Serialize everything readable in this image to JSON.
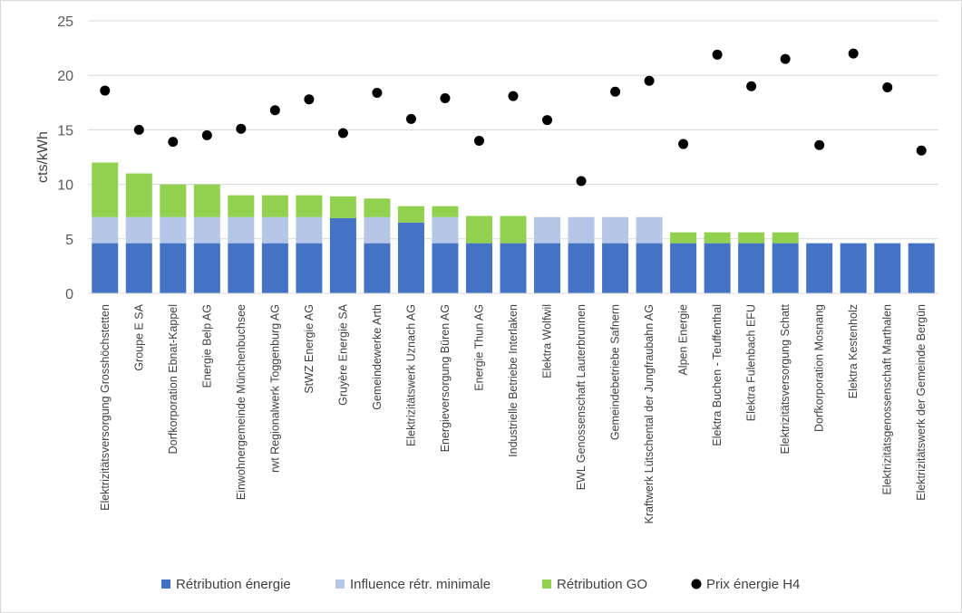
{
  "chart_data": {
    "type": "bar",
    "stacked": true,
    "ylabel": "cts/kWh",
    "xlabel": "",
    "ylim": [
      0,
      25
    ],
    "yticks": [
      0,
      5,
      10,
      15,
      20,
      25
    ],
    "grid": true,
    "legend_position": "bottom",
    "categories": [
      "Elektrizitätsversorgung Grosshöchstetten",
      "Groupe E SA",
      "Dorfkorporation Ebnat-Kappel",
      "Energie Belp AG",
      "Einwohnergemeinde Münchenbuchsee",
      "rwt Regionalwerk Toggenburg AG",
      "StWZ Energie AG",
      "Gruyère Energie SA",
      "Gemeindewerke Arth",
      "Elektrizitätswerk Uznach AG",
      "Energieversorgung Büren AG",
      "Energie Thun AG",
      "Industrielle Betriebe Interlaken",
      "Elektra Wolfwil",
      "EWL Genossenschaft Lauterbrunnen",
      "Gemeindebetriebe Safnern",
      "Kraftwerk Lütschental der Jungfraubahn AG",
      "Alpen Energie",
      "Elektra Buchen - Teuffenthal",
      "Elektra Fulenbach EFU",
      "Elektrizitätsversorgung Schatt",
      "Dorfkorporation Mosnang",
      "Elektra Kestenholz",
      "Elektrizitätsgenossenschaft Marthalen",
      "Elektrizitätswerk der Gemeinde Bergün"
    ],
    "series": [
      {
        "name": "Rétribution énergie",
        "kind": "bar",
        "color": "#4472c4",
        "values": [
          4.6,
          4.6,
          4.6,
          4.6,
          4.6,
          4.6,
          4.6,
          6.9,
          4.6,
          6.5,
          4.6,
          4.6,
          4.6,
          4.6,
          4.6,
          4.6,
          4.6,
          4.6,
          4.6,
          4.6,
          4.6,
          4.6,
          4.6,
          4.6,
          4.6
        ]
      },
      {
        "name": "Influence rétr. minimale",
        "kind": "bar",
        "color": "#b4c7e7",
        "values": [
          2.4,
          2.4,
          2.4,
          2.4,
          2.4,
          2.4,
          2.4,
          0,
          2.4,
          0,
          2.4,
          0,
          0,
          2.4,
          2.4,
          2.4,
          2.4,
          0,
          0,
          0,
          0,
          0,
          0,
          0,
          0
        ]
      },
      {
        "name": "Rétribution GO",
        "kind": "bar",
        "color": "#92d050",
        "values": [
          5.0,
          4.0,
          3.0,
          3.0,
          2.0,
          2.0,
          2.0,
          2.0,
          1.7,
          1.5,
          1.0,
          2.5,
          2.5,
          0,
          0,
          0,
          0,
          1.0,
          1.0,
          1.0,
          1.0,
          0,
          0,
          0,
          0
        ]
      },
      {
        "name": "Prix énergie H4",
        "kind": "scatter",
        "color": "#000000",
        "values": [
          18.6,
          15.0,
          13.9,
          14.5,
          15.1,
          16.8,
          17.8,
          14.7,
          18.4,
          16.0,
          17.9,
          14.0,
          18.1,
          15.9,
          10.3,
          18.5,
          19.5,
          13.7,
          21.9,
          19.0,
          21.5,
          13.6,
          22.0,
          18.9,
          13.1
        ]
      }
    ]
  }
}
